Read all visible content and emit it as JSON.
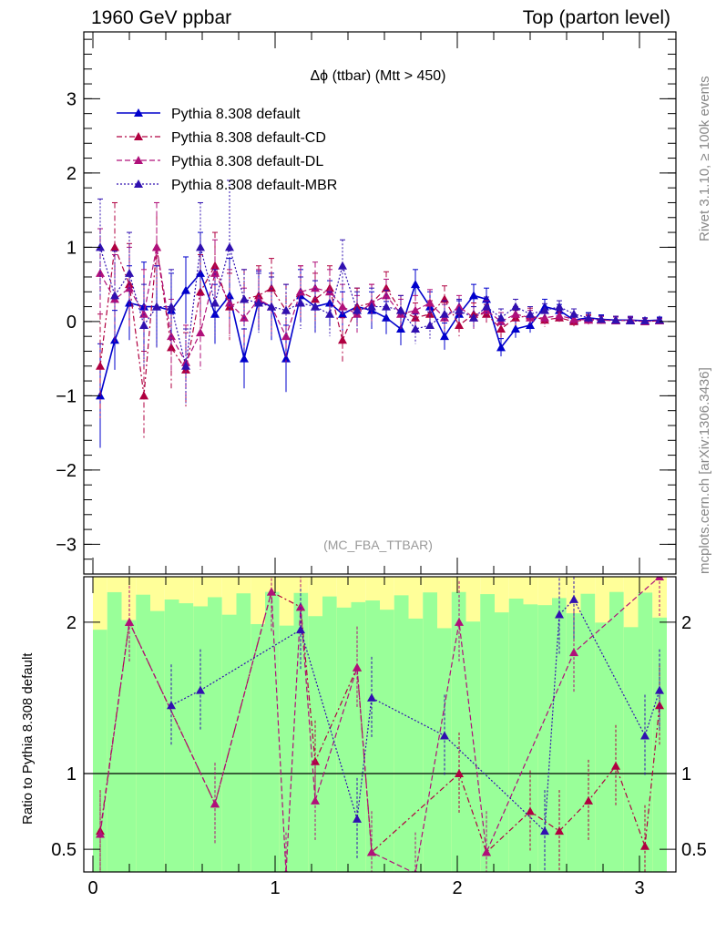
{
  "header": {
    "left": "1960 GeV ppbar",
    "right": "Top (parton level)"
  },
  "side": {
    "rivet": "Rivet 3.1.10, ≥ 100k events",
    "mcplots": "mcplots.cern.ch [arXiv:1306.3436]"
  },
  "chart_data": [
    {
      "type": "line",
      "title": "Δϕ (ttbar) (Mtt > 450)",
      "watermark": "(MC_FBA_TTBAR)",
      "xlabel": "",
      "ylabel": "",
      "xlim": [
        -0.05,
        3.2
      ],
      "ylim": [
        -3.4,
        3.9
      ],
      "yticks": [
        -3,
        -2,
        -1,
        0,
        1,
        2,
        3
      ],
      "ytick_labels": [
        "−3",
        "−2",
        "−1",
        "0",
        "1",
        "2",
        "3"
      ],
      "grid": false,
      "legend_position": "top-left",
      "series": [
        {
          "name": "Pythia 8.308 default",
          "color": "#0000cc",
          "line_style": "solid",
          "x": [
            0.04,
            0.12,
            0.2,
            0.28,
            0.35,
            0.43,
            0.51,
            0.59,
            0.67,
            0.75,
            0.83,
            0.91,
            0.98,
            1.06,
            1.14,
            1.22,
            1.3,
            1.37,
            1.45,
            1.53,
            1.61,
            1.69,
            1.77,
            1.85,
            1.93,
            2.01,
            2.09,
            2.16,
            2.24,
            2.32,
            2.4,
            2.48,
            2.56,
            2.64,
            2.72,
            2.79,
            2.87,
            2.95,
            3.03,
            3.11
          ],
          "values": [
            -1.0,
            -0.25,
            0.25,
            0.2,
            0.2,
            0.15,
            0.42,
            0.65,
            0.1,
            0.35,
            -0.5,
            0.28,
            0.2,
            -0.5,
            0.35,
            0.2,
            0.25,
            0.1,
            0.2,
            0.15,
            0.05,
            -0.1,
            0.5,
            0.2,
            -0.2,
            0.1,
            0.35,
            0.3,
            -0.35,
            -0.1,
            -0.05,
            0.2,
            0.15,
            0.02,
            0.05,
            0.03,
            0.02,
            0.02,
            0.01,
            0.02
          ],
          "errors": [
            0.7,
            0.4,
            0.5,
            0.6,
            0.55,
            0.5,
            0.45,
            0.55,
            0.4,
            0.5,
            0.4,
            0.4,
            0.45,
            0.45,
            0.35,
            0.35,
            0.3,
            0.3,
            0.25,
            0.25,
            0.22,
            0.22,
            0.2,
            0.2,
            0.18,
            0.18,
            0.15,
            0.15,
            0.12,
            0.12,
            0.1,
            0.1,
            0.08,
            0.08,
            0.07,
            0.06,
            0.05,
            0.05,
            0.04,
            0.04
          ]
        },
        {
          "name": "Pythia 8.308 default-CD",
          "color": "#b00040",
          "line_style": "dashdot",
          "x": [
            0.04,
            0.12,
            0.2,
            0.28,
            0.35,
            0.43,
            0.51,
            0.59,
            0.67,
            0.75,
            0.83,
            0.91,
            0.98,
            1.06,
            1.14,
            1.22,
            1.3,
            1.37,
            1.45,
            1.53,
            1.61,
            1.69,
            1.77,
            1.85,
            1.93,
            2.01,
            2.09,
            2.16,
            2.24,
            2.32,
            2.4,
            2.48,
            2.56,
            2.64,
            2.72,
            2.79,
            2.87,
            2.95,
            3.03,
            3.11
          ],
          "values": [
            -0.6,
            1.0,
            0.5,
            -1.0,
            1.0,
            -0.35,
            -0.65,
            0.4,
            0.75,
            0.2,
            0.3,
            0.35,
            0.45,
            0.15,
            0.4,
            0.3,
            0.45,
            -0.25,
            0.2,
            0.25,
            0.45,
            0.15,
            0.05,
            0.1,
            0.3,
            -0.05,
            0.1,
            0.1,
            -0.1,
            0.05,
            0.08,
            0.02,
            0.05,
            0.0,
            0.03,
            0.02,
            0.02,
            0.01,
            0.0,
            0.01
          ],
          "errors": [
            0.7,
            0.6,
            0.55,
            0.6,
            0.6,
            0.55,
            0.5,
            0.5,
            0.45,
            0.45,
            0.4,
            0.4,
            0.4,
            0.35,
            0.35,
            0.35,
            0.3,
            0.3,
            0.25,
            0.25,
            0.22,
            0.2,
            0.2,
            0.18,
            0.18,
            0.15,
            0.15,
            0.13,
            0.12,
            0.1,
            0.1,
            0.09,
            0.08,
            0.07,
            0.06,
            0.05,
            0.05,
            0.04,
            0.04,
            0.03
          ]
        },
        {
          "name": "Pythia 8.308 default-DL",
          "color": "#b0107a",
          "line_style": "dashed",
          "x": [
            0.04,
            0.12,
            0.2,
            0.28,
            0.35,
            0.43,
            0.51,
            0.59,
            0.67,
            0.75,
            0.83,
            0.91,
            0.98,
            1.06,
            1.14,
            1.22,
            1.3,
            1.37,
            1.45,
            1.53,
            1.61,
            1.69,
            1.77,
            1.85,
            1.93,
            2.01,
            2.09,
            2.16,
            2.24,
            2.32,
            2.4,
            2.48,
            2.56,
            2.64,
            2.72,
            2.79,
            2.87,
            2.95,
            3.03,
            3.11
          ],
          "values": [
            0.65,
            0.3,
            0.45,
            0.1,
            1.0,
            -0.2,
            -0.55,
            -0.15,
            0.65,
            0.25,
            0.05,
            0.3,
            0.2,
            -0.2,
            0.4,
            0.45,
            0.4,
            0.2,
            0.1,
            0.25,
            0.35,
            0.1,
            0.15,
            0.25,
            0.05,
            0.2,
            0.05,
            0.15,
            0.0,
            0.1,
            0.05,
            0.05,
            0.08,
            0.03,
            0.02,
            0.02,
            0.01,
            0.02,
            0.0,
            0.01
          ],
          "errors": [
            0.6,
            0.6,
            0.55,
            0.6,
            0.6,
            0.5,
            0.5,
            0.5,
            0.45,
            0.45,
            0.4,
            0.4,
            0.4,
            0.35,
            0.35,
            0.35,
            0.3,
            0.3,
            0.25,
            0.25,
            0.22,
            0.2,
            0.2,
            0.18,
            0.18,
            0.15,
            0.15,
            0.13,
            0.12,
            0.1,
            0.1,
            0.09,
            0.08,
            0.07,
            0.06,
            0.05,
            0.05,
            0.04,
            0.04,
            0.03
          ]
        },
        {
          "name": "Pythia 8.308 default-MBR",
          "color": "#3010b0",
          "line_style": "dotted",
          "x": [
            0.04,
            0.12,
            0.2,
            0.28,
            0.35,
            0.43,
            0.51,
            0.59,
            0.67,
            0.75,
            0.83,
            0.91,
            0.98,
            1.06,
            1.14,
            1.22,
            1.3,
            1.37,
            1.45,
            1.53,
            1.61,
            1.69,
            1.77,
            1.85,
            1.93,
            2.01,
            2.09,
            2.16,
            2.24,
            2.32,
            2.4,
            2.48,
            2.56,
            2.64,
            2.72,
            2.79,
            2.87,
            2.95,
            3.03,
            3.11
          ],
          "values": [
            1.0,
            0.35,
            0.65,
            -0.05,
            0.2,
            0.2,
            -0.6,
            1.0,
            0.25,
            1.0,
            0.3,
            0.25,
            0.2,
            0.15,
            0.25,
            0.2,
            0.1,
            0.75,
            0.15,
            0.2,
            0.2,
            0.15,
            -0.1,
            -0.05,
            0.1,
            0.15,
            0.05,
            0.2,
            0.05,
            0.2,
            0.1,
            0.15,
            0.2,
            0.1,
            0.05,
            0.03,
            0.02,
            0.01,
            0.01,
            0.02
          ],
          "errors": [
            0.65,
            0.6,
            0.55,
            0.55,
            0.55,
            0.5,
            0.5,
            0.6,
            0.45,
            0.9,
            0.4,
            0.4,
            0.4,
            0.35,
            0.35,
            0.35,
            0.3,
            0.35,
            0.25,
            0.25,
            0.22,
            0.2,
            0.2,
            0.18,
            0.18,
            0.15,
            0.15,
            0.13,
            0.12,
            0.1,
            0.1,
            0.09,
            0.08,
            0.07,
            0.06,
            0.05,
            0.05,
            0.04,
            0.04,
            0.03
          ]
        }
      ]
    },
    {
      "type": "line",
      "title": "",
      "ylabel": "Ratio to Pythia 8.308 default",
      "xlim": [
        -0.05,
        3.2
      ],
      "ylim": [
        0.35,
        2.3
      ],
      "xticks": [
        0,
        1,
        2,
        3
      ],
      "xtick_labels": [
        "0",
        "1",
        "2",
        "3"
      ],
      "yticks": [
        0.5,
        1,
        2
      ],
      "ytick_labels": [
        "0.5",
        "1",
        "2"
      ],
      "reference_line": 1,
      "band_colors": {
        "inner": "#99ff99",
        "outer": "#ffff99"
      },
      "series": [
        {
          "name": "Pythia 8.308 default-CD",
          "color": "#b00040",
          "x": [
            0.04,
            0.2,
            0.67,
            0.98,
            1.14,
            1.22,
            1.45,
            1.53,
            2.01,
            2.16,
            2.4,
            2.56,
            2.72,
            2.87,
            3.03,
            3.11
          ],
          "values": [
            0.62,
            2.0,
            0.8,
            2.2,
            2.1,
            1.08,
            1.7,
            0.48,
            1.0,
            0.48,
            0.75,
            0.62,
            0.82,
            1.05,
            0.52,
            1.45
          ]
        },
        {
          "name": "Pythia 8.308 default-DL",
          "color": "#b0107a",
          "x": [
            0.04,
            0.2,
            0.67,
            0.98,
            1.06,
            1.14,
            1.22,
            1.45,
            1.53,
            1.77,
            2.01,
            2.16,
            2.64,
            3.11
          ],
          "values": [
            0.6,
            2.0,
            0.8,
            2.2,
            0.34,
            2.1,
            0.82,
            1.7,
            0.48,
            0.34,
            2.0,
            0.48,
            1.8,
            2.3
          ]
        },
        {
          "name": "Pythia 8.308 default-MBR",
          "color": "#3010b0",
          "x": [
            0.43,
            0.59,
            1.14,
            1.45,
            1.53,
            1.93,
            2.48,
            2.56,
            2.64,
            3.03,
            3.11
          ],
          "values": [
            1.45,
            1.55,
            1.95,
            0.7,
            1.5,
            1.25,
            0.62,
            2.05,
            2.15,
            1.25,
            1.55
          ]
        }
      ]
    }
  ]
}
